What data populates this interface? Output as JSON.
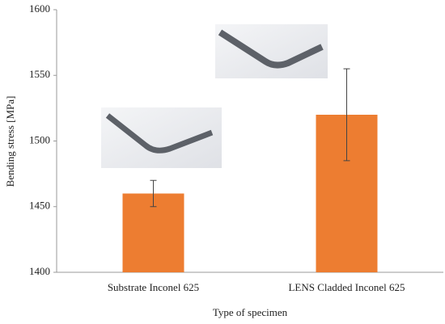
{
  "chart_data": {
    "type": "bar",
    "categories": [
      "Substrate Inconel 625",
      "LENS Cladded Inconel 625"
    ],
    "values": [
      1460,
      1520
    ],
    "errors": [
      10,
      35
    ],
    "color": "#ed7d31",
    "ylim": [
      1400,
      1600
    ],
    "yticks": [
      1400,
      1450,
      1500,
      1550,
      1600
    ],
    "x_label": "Type of specimen",
    "y_label": "Bending stress [MPa]",
    "grid": false
  }
}
